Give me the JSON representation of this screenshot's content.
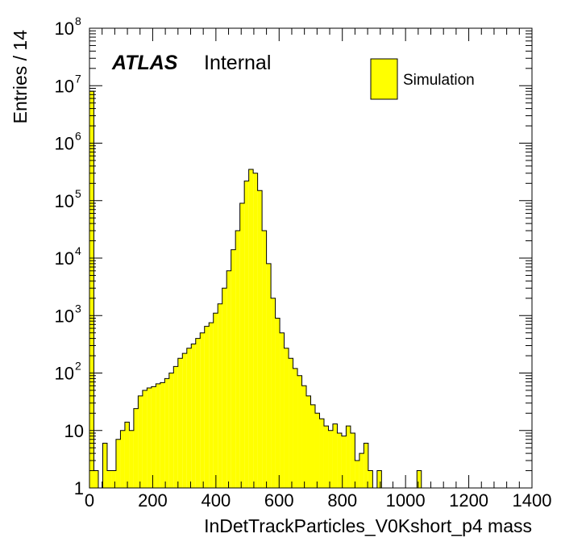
{
  "chart_data": {
    "type": "bar",
    "histogram": true,
    "xlabel": "InDetTrackParticles_V0Kshort_p4 mass",
    "ylabel": "Entries / 14",
    "xlim": [
      0,
      1400
    ],
    "ylim": [
      1,
      100000000
    ],
    "yscale": "log",
    "bin_width": 14,
    "x_ticks": [
      0,
      200,
      400,
      600,
      800,
      1000,
      1200,
      1400
    ],
    "y_ticks": [
      {
        "value": 1,
        "base": "1",
        "exp": ""
      },
      {
        "value": 10,
        "base": "10",
        "exp": ""
      },
      {
        "value": 100,
        "base": "10",
        "exp": "2"
      },
      {
        "value": 1000,
        "base": "10",
        "exp": "3"
      },
      {
        "value": 10000,
        "base": "10",
        "exp": "4"
      },
      {
        "value": 100000,
        "base": "10",
        "exp": "5"
      },
      {
        "value": 1000000,
        "base": "10",
        "exp": "6"
      },
      {
        "value": 10000000,
        "base": "10",
        "exp": "7"
      },
      {
        "value": 100000000,
        "base": "10",
        "exp": "8"
      }
    ],
    "fill_color": "#ffff00",
    "line_color": "#000000",
    "series": [
      {
        "name": "Simulation",
        "bins": [
          {
            "x": 0,
            "y": 8000000
          },
          {
            "x": 14,
            "y": 2
          },
          {
            "x": 28,
            "y": 1
          },
          {
            "x": 42,
            "y": 6
          },
          {
            "x": 56,
            "y": 2
          },
          {
            "x": 70,
            "y": 2
          },
          {
            "x": 84,
            "y": 7
          },
          {
            "x": 98,
            "y": 10
          },
          {
            "x": 112,
            "y": 14
          },
          {
            "x": 126,
            "y": 10
          },
          {
            "x": 140,
            "y": 24
          },
          {
            "x": 154,
            "y": 40
          },
          {
            "x": 168,
            "y": 50
          },
          {
            "x": 182,
            "y": 55
          },
          {
            "x": 196,
            "y": 58
          },
          {
            "x": 210,
            "y": 65
          },
          {
            "x": 224,
            "y": 68
          },
          {
            "x": 238,
            "y": 80
          },
          {
            "x": 252,
            "y": 100
          },
          {
            "x": 266,
            "y": 130
          },
          {
            "x": 280,
            "y": 180
          },
          {
            "x": 294,
            "y": 220
          },
          {
            "x": 308,
            "y": 270
          },
          {
            "x": 322,
            "y": 320
          },
          {
            "x": 336,
            "y": 400
          },
          {
            "x": 350,
            "y": 500
          },
          {
            "x": 364,
            "y": 650
          },
          {
            "x": 378,
            "y": 750
          },
          {
            "x": 392,
            "y": 1100
          },
          {
            "x": 406,
            "y": 1600
          },
          {
            "x": 420,
            "y": 3000
          },
          {
            "x": 434,
            "y": 6000
          },
          {
            "x": 448,
            "y": 14000
          },
          {
            "x": 462,
            "y": 30000
          },
          {
            "x": 476,
            "y": 90000
          },
          {
            "x": 490,
            "y": 220000
          },
          {
            "x": 504,
            "y": 350000
          },
          {
            "x": 518,
            "y": 300000
          },
          {
            "x": 532,
            "y": 150000
          },
          {
            "x": 546,
            "y": 30000
          },
          {
            "x": 560,
            "y": 8000
          },
          {
            "x": 574,
            "y": 2000
          },
          {
            "x": 588,
            "y": 900
          },
          {
            "x": 602,
            "y": 500
          },
          {
            "x": 616,
            "y": 270
          },
          {
            "x": 630,
            "y": 180
          },
          {
            "x": 644,
            "y": 120
          },
          {
            "x": 658,
            "y": 90
          },
          {
            "x": 672,
            "y": 60
          },
          {
            "x": 686,
            "y": 40
          },
          {
            "x": 700,
            "y": 28
          },
          {
            "x": 714,
            "y": 20
          },
          {
            "x": 728,
            "y": 16
          },
          {
            "x": 742,
            "y": 12
          },
          {
            "x": 756,
            "y": 10
          },
          {
            "x": 770,
            "y": 13
          },
          {
            "x": 784,
            "y": 9
          },
          {
            "x": 798,
            "y": 8
          },
          {
            "x": 812,
            "y": 12
          },
          {
            "x": 826,
            "y": 9
          },
          {
            "x": 840,
            "y": 3
          },
          {
            "x": 854,
            "y": 4
          },
          {
            "x": 868,
            "y": 6
          },
          {
            "x": 882,
            "y": 2
          },
          {
            "x": 896,
            "y": 1
          },
          {
            "x": 910,
            "y": 2
          },
          {
            "x": 924,
            "y": 1
          },
          {
            "x": 938,
            "y": 1
          },
          {
            "x": 952,
            "y": 1
          },
          {
            "x": 966,
            "y": 1
          },
          {
            "x": 980,
            "y": 1
          },
          {
            "x": 994,
            "y": 1
          },
          {
            "x": 1008,
            "y": 1
          },
          {
            "x": 1022,
            "y": 1
          },
          {
            "x": 1036,
            "y": 2
          }
        ]
      }
    ]
  },
  "annotation": {
    "atlas": "ATLAS",
    "status": "Internal"
  },
  "legend": {
    "placement": "top-right",
    "entries": [
      {
        "label": "Simulation"
      }
    ]
  }
}
